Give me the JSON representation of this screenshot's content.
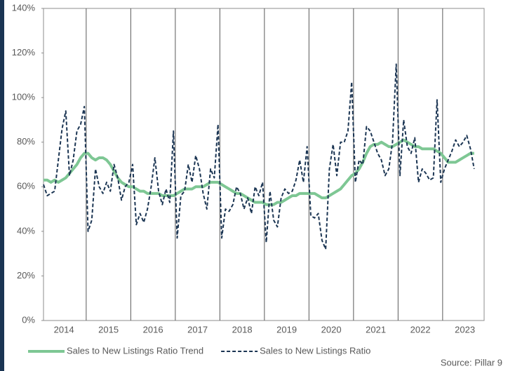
{
  "chart_data": {
    "type": "line",
    "categories": [
      "2014",
      null,
      null,
      null,
      null,
      null,
      null,
      null,
      null,
      null,
      null,
      null,
      "2015",
      null,
      null,
      null,
      null,
      null,
      null,
      null,
      null,
      null,
      null,
      null,
      "2016",
      null,
      null,
      null,
      null,
      null,
      null,
      null,
      null,
      null,
      null,
      null,
      "2017",
      null,
      null,
      null,
      null,
      null,
      null,
      null,
      null,
      null,
      null,
      null,
      "2018",
      null,
      null,
      null,
      null,
      null,
      null,
      null,
      null,
      null,
      null,
      null,
      "2019",
      null,
      null,
      null,
      null,
      null,
      null,
      null,
      null,
      null,
      null,
      null,
      "2020",
      null,
      null,
      null,
      null,
      null,
      null,
      null,
      null,
      null,
      null,
      null,
      "2021",
      null,
      null,
      null,
      null,
      null,
      null,
      null,
      null,
      null,
      null,
      null,
      "2022",
      null,
      null,
      null,
      null,
      null,
      null,
      null,
      null,
      null,
      null,
      null,
      "2023",
      null,
      null,
      null,
      null,
      null,
      null,
      null,
      null
    ],
    "series": [
      {
        "name": "Sales to New Listings Ratio Trend",
        "color": "#7ec794",
        "style": "solid",
        "values": [
          63,
          63,
          62,
          63,
          62,
          63,
          64,
          66,
          68,
          70,
          73,
          75,
          75,
          73,
          72,
          73,
          73,
          72,
          70,
          67,
          64,
          62,
          61,
          60,
          60,
          59,
          58,
          58,
          57,
          57,
          57,
          57,
          56,
          56,
          56,
          56,
          57,
          58,
          59,
          59,
          59,
          60,
          60,
          60,
          61,
          62,
          62,
          62,
          61,
          60,
          59,
          58,
          57,
          57,
          56,
          55,
          54,
          53,
          53,
          53,
          52,
          52,
          52,
          53,
          53,
          54,
          55,
          56,
          56,
          57,
          57,
          57,
          57,
          57,
          56,
          55,
          55,
          56,
          57,
          58,
          59,
          61,
          63,
          65,
          66,
          68,
          71,
          75,
          78,
          79,
          79,
          80,
          79,
          78,
          78,
          79,
          80,
          81,
          80,
          79,
          78,
          78,
          77,
          77,
          77,
          77,
          76,
          75,
          73,
          71,
          71,
          71,
          72,
          73,
          74,
          75,
          75
        ]
      },
      {
        "name": "Sales to New Listings Ratio",
        "color": "#1b3553",
        "style": "dashed",
        "values": [
          61,
          56,
          57,
          58,
          72,
          86,
          94,
          65,
          72,
          85,
          88,
          96,
          40,
          45,
          68,
          60,
          57,
          62,
          58,
          70,
          64,
          54,
          60,
          62,
          70,
          43,
          48,
          44,
          50,
          60,
          73,
          58,
          52,
          59,
          53,
          85,
          37,
          56,
          58,
          70,
          62,
          74,
          68,
          57,
          50,
          68,
          64,
          88,
          37,
          50,
          49,
          52,
          60,
          57,
          50,
          55,
          48,
          60,
          56,
          62,
          35,
          58,
          45,
          42,
          55,
          59,
          57,
          58,
          63,
          72,
          62,
          78,
          47,
          46,
          48,
          36,
          32,
          68,
          79,
          65,
          80,
          80,
          85,
          107,
          62,
          72,
          70,
          87,
          85,
          80,
          75,
          72,
          65,
          68,
          80,
          115,
          65,
          90,
          78,
          75,
          82,
          62,
          68,
          66,
          63,
          64,
          99,
          62,
          68,
          72,
          76,
          81,
          78,
          80,
          83,
          77,
          68
        ]
      }
    ],
    "ylim": [
      0,
      140
    ],
    "yticks": [
      {
        "value": 0,
        "label": "0%"
      },
      {
        "value": 20,
        "label": "20%"
      },
      {
        "value": 40,
        "label": "40%"
      },
      {
        "value": 60,
        "label": "60%"
      },
      {
        "value": 80,
        "label": "80%"
      },
      {
        "value": 100,
        "label": "100%"
      },
      {
        "value": 120,
        "label": "120%"
      },
      {
        "value": 140,
        "label": "140%"
      }
    ],
    "legend": "bottom",
    "source": "Source: Pillar 9"
  }
}
